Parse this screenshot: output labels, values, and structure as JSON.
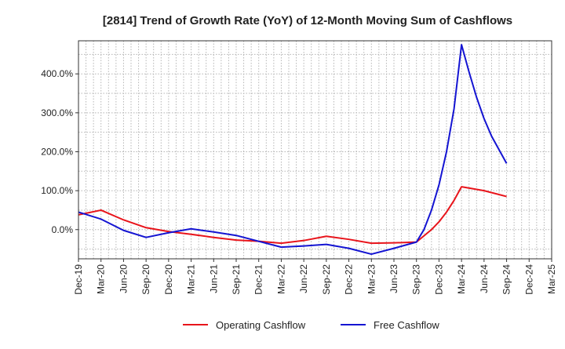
{
  "chart_data": {
    "type": "line",
    "title": "[2814]  Trend of Growth Rate (YoY) of 12-Month Moving Sum of Cashflows",
    "xlabel": "",
    "ylabel": "",
    "x_tick_labels": [
      "Dec-19",
      "Mar-20",
      "Jun-20",
      "Sep-20",
      "Dec-20",
      "Mar-21",
      "Jun-21",
      "Sep-21",
      "Dec-21",
      "Mar-22",
      "Jun-22",
      "Sep-22",
      "Dec-22",
      "Mar-23",
      "Jun-23",
      "Sep-23",
      "Dec-23",
      "Mar-24",
      "Jun-24",
      "Sep-24",
      "Dec-24",
      "Mar-25"
    ],
    "y_ticks": [
      0,
      100,
      200,
      300,
      400
    ],
    "y_tick_labels": [
      "0.0%",
      "100.0%",
      "200.0%",
      "300.0%",
      "400.0%"
    ],
    "ylim": [
      -75,
      485
    ],
    "grid": true,
    "legend_position": "bottom",
    "series": [
      {
        "name": "Operating Cashflow",
        "color": "#e8141b",
        "points": [
          [
            "Dec-19",
            38
          ],
          [
            "Mar-20",
            50
          ],
          [
            "Jun-20",
            25
          ],
          [
            "Sep-20",
            5
          ],
          [
            "Dec-20",
            -5
          ],
          [
            "Mar-21",
            -12
          ],
          [
            "Jun-21",
            -20
          ],
          [
            "Sep-21",
            -27
          ],
          [
            "Dec-21",
            -30
          ],
          [
            "Mar-22",
            -35
          ],
          [
            "Jun-22",
            -28
          ],
          [
            "Sep-22",
            -17
          ],
          [
            "Dec-22",
            -25
          ],
          [
            "Mar-23",
            -35
          ],
          [
            "Jun-23",
            -34
          ],
          [
            "Sep-23",
            -32
          ],
          [
            "Nov-23",
            0
          ],
          [
            "Dec-23",
            20
          ],
          [
            "Jan-24",
            45
          ],
          [
            "Feb-24",
            75
          ],
          [
            "Mar-24",
            110
          ],
          [
            "Jun-24",
            100
          ],
          [
            "Sep-24",
            85
          ]
        ]
      },
      {
        "name": "Free Cashflow",
        "color": "#1414d2",
        "points": [
          [
            "Dec-19",
            45
          ],
          [
            "Mar-20",
            27
          ],
          [
            "Jun-20",
            -2
          ],
          [
            "Sep-20",
            -20
          ],
          [
            "Dec-20",
            -8
          ],
          [
            "Mar-21",
            2
          ],
          [
            "Jun-21",
            -6
          ],
          [
            "Sep-21",
            -15
          ],
          [
            "Dec-21",
            -30
          ],
          [
            "Mar-22",
            -45
          ],
          [
            "Jun-22",
            -42
          ],
          [
            "Sep-22",
            -38
          ],
          [
            "Dec-22",
            -48
          ],
          [
            "Mar-23",
            -63
          ],
          [
            "Jun-23",
            -48
          ],
          [
            "Sep-23",
            -32
          ],
          [
            "Oct-23",
            0
          ],
          [
            "Nov-23",
            50
          ],
          [
            "Dec-23",
            115
          ],
          [
            "Jan-24",
            200
          ],
          [
            "Feb-24",
            310
          ],
          [
            "Mar-24",
            475
          ],
          [
            "Apr-24",
            405
          ],
          [
            "May-24",
            340
          ],
          [
            "Jun-24",
            285
          ],
          [
            "Jul-24",
            240
          ],
          [
            "Aug-24",
            205
          ],
          [
            "Sep-24",
            170
          ]
        ]
      }
    ]
  }
}
